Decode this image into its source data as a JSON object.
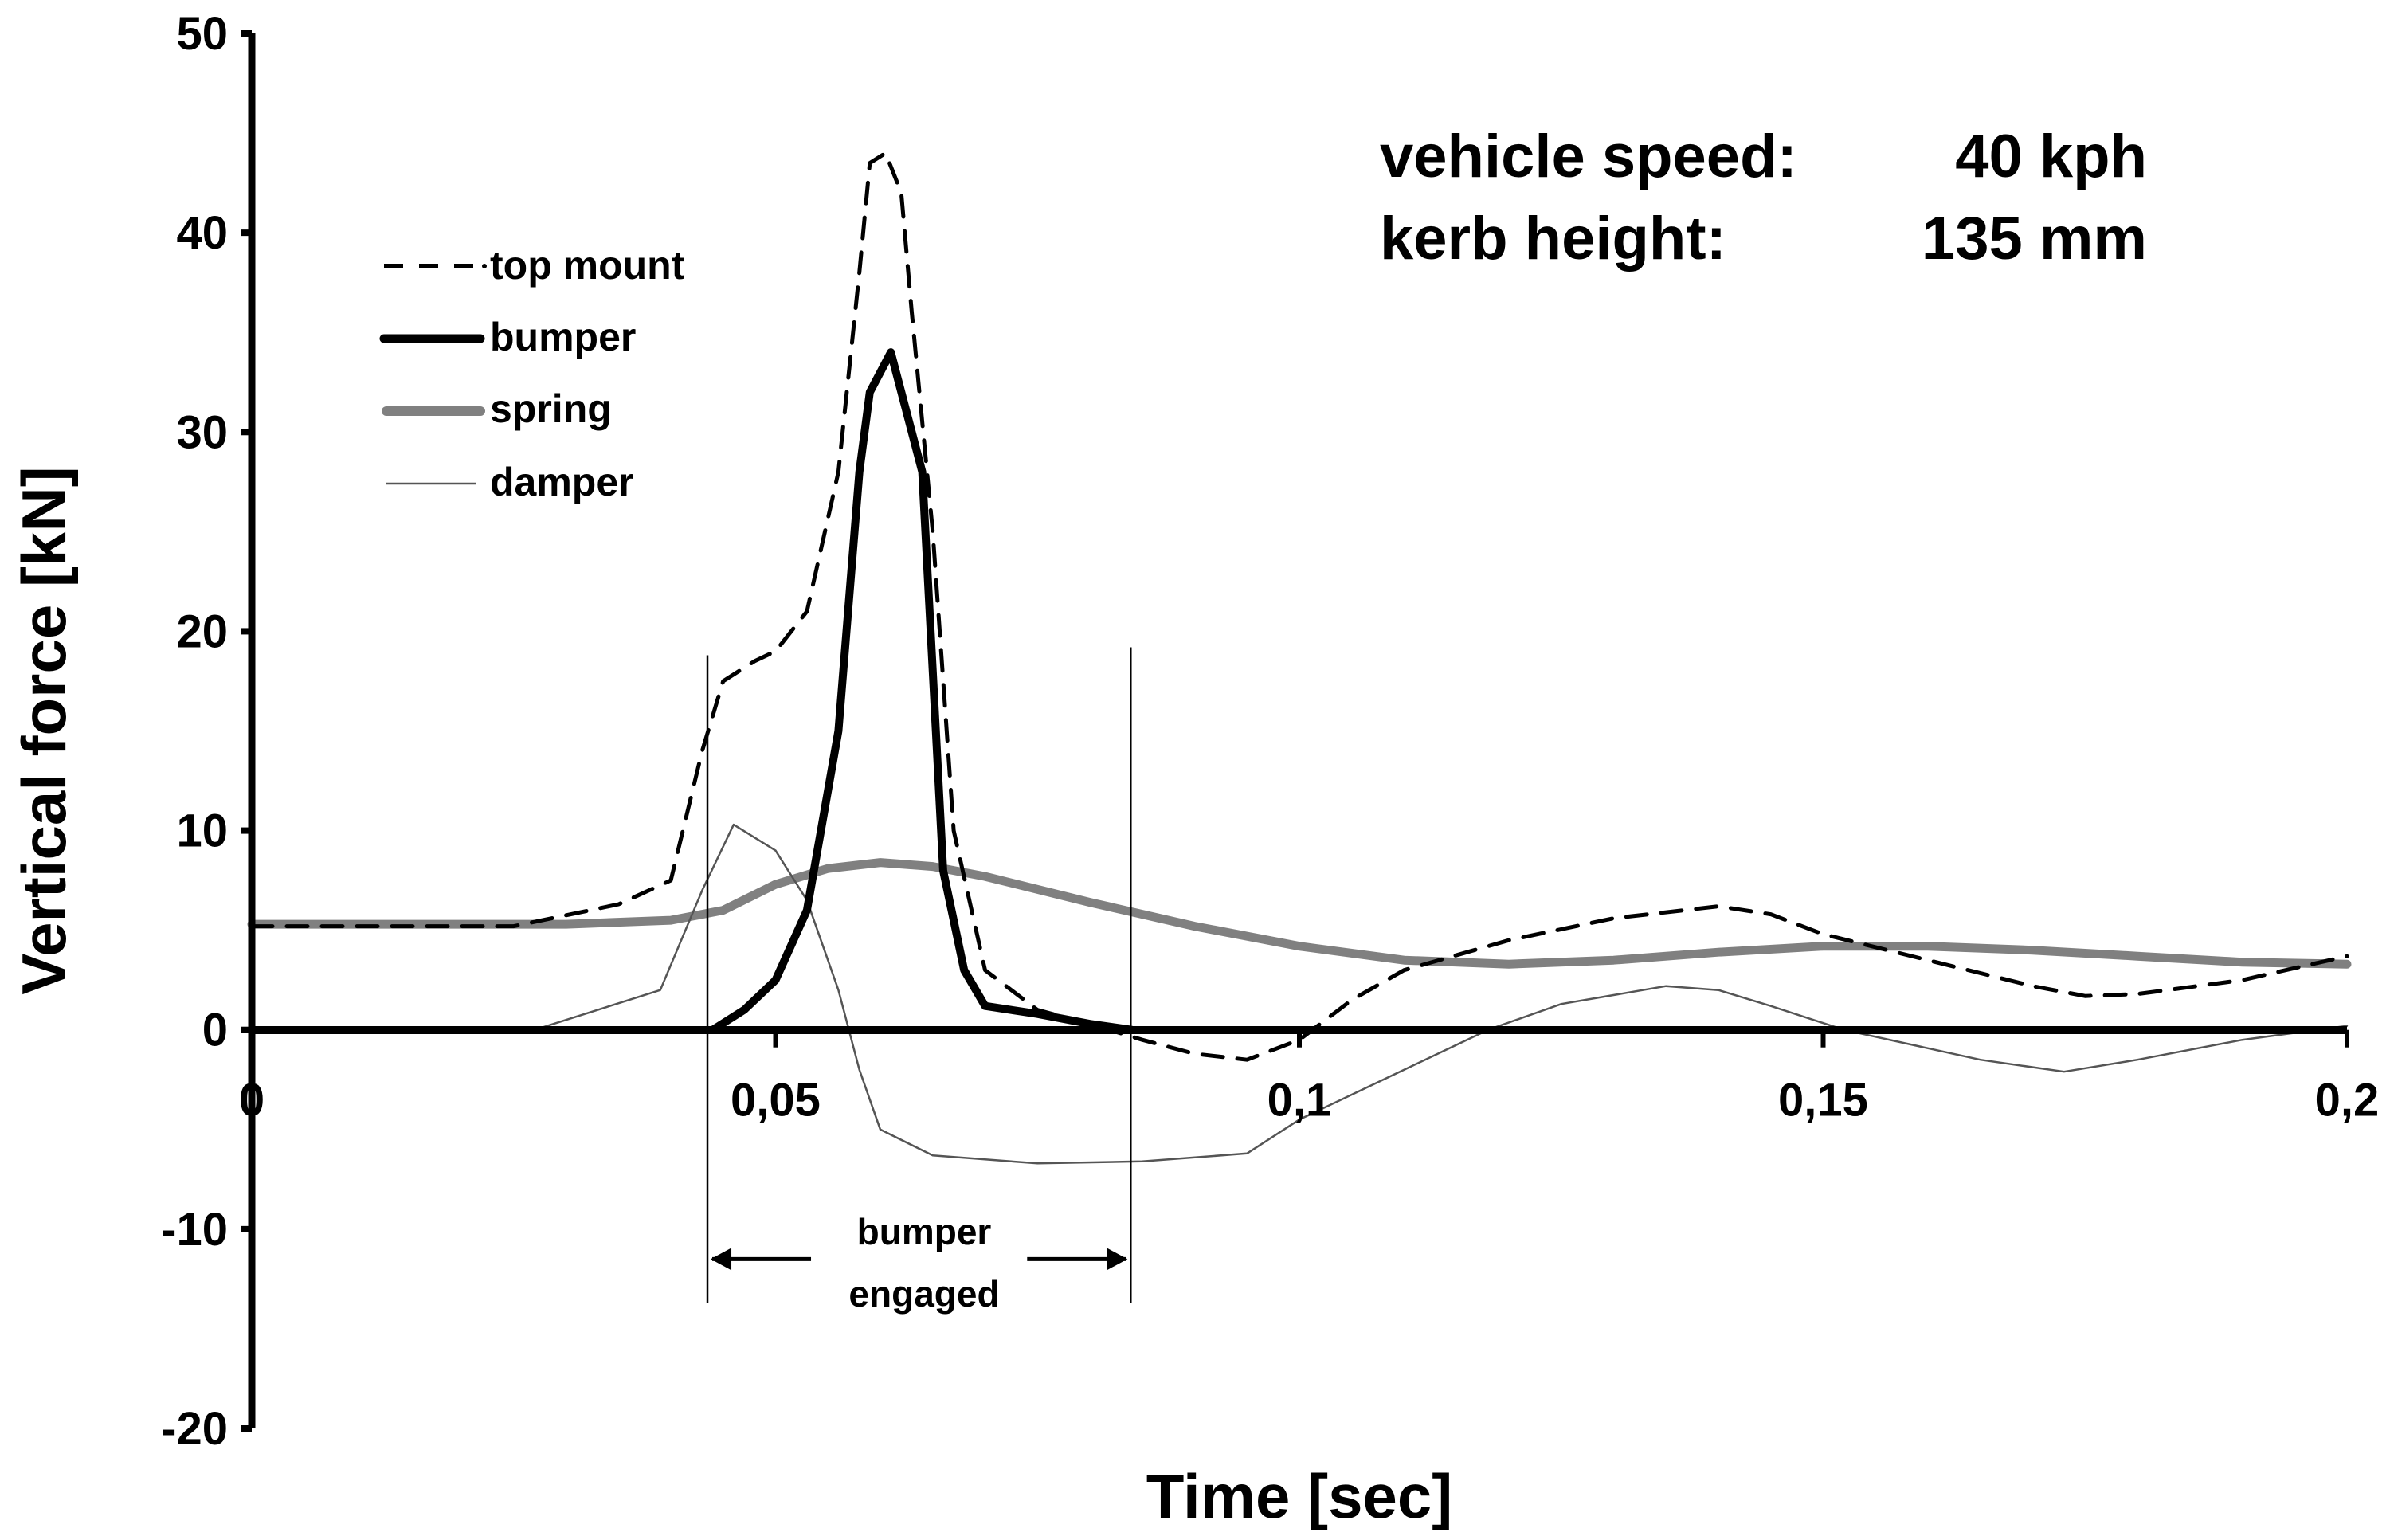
{
  "chart_data": {
    "type": "line",
    "title": "",
    "xlabel": "Time [sec]",
    "ylabel": "Vertical force [kN]",
    "xlim": [
      0,
      0.2
    ],
    "ylim": [
      -20,
      50
    ],
    "x_ticks": [
      "0",
      "0,05",
      "0,1",
      "0,15",
      "0,2"
    ],
    "x_tick_values": [
      0,
      0.05,
      0.1,
      0.15,
      0.2
    ],
    "y_ticks": [
      "50",
      "40",
      "30",
      "20",
      "10",
      "0",
      "-10",
      "-20"
    ],
    "y_tick_values": [
      50,
      40,
      30,
      20,
      10,
      0,
      -10,
      -20
    ],
    "grid": false,
    "legend_placement": "top-left",
    "annotations": {
      "speed_label": "vehicle speed:",
      "speed_value": "40 kph",
      "kerb_label": "kerb height:",
      "kerb_value": "135 mm",
      "range_label_1": "bumper",
      "range_label_2": "engaged",
      "range_start": 0.0435,
      "range_end": 0.0839
    },
    "series": [
      {
        "name": "top mount",
        "style": "dashed",
        "color": "#000000",
        "x": [
          0,
          0.025,
          0.035,
          0.04,
          0.043,
          0.045,
          0.048,
          0.05,
          0.053,
          0.056,
          0.058,
          0.059,
          0.0605,
          0.062,
          0.063,
          0.065,
          0.067,
          0.07,
          0.075,
          0.08,
          0.085,
          0.09,
          0.095,
          0.1,
          0.105,
          0.11,
          0.12,
          0.13,
          0.14,
          0.145,
          0.15,
          0.16,
          0.17,
          0.175,
          0.18,
          0.19,
          0.2
        ],
        "y": [
          5.2,
          5.2,
          6.3,
          7.5,
          14,
          17.5,
          18.5,
          19,
          21,
          28,
          38,
          43.5,
          44,
          42,
          36,
          25,
          10,
          3,
          1,
          0.3,
          -0.5,
          -1.2,
          -1.5,
          -0.5,
          1.5,
          3,
          4.5,
          5.6,
          6.2,
          5.8,
          4.8,
          3.5,
          2.2,
          1.7,
          1.8,
          2.5,
          3.7
        ]
      },
      {
        "name": "bumper",
        "style": "thick",
        "color": "#000000",
        "x": [
          0.044,
          0.047,
          0.05,
          0.053,
          0.056,
          0.058,
          0.059,
          0.061,
          0.063,
          0.064,
          0.065,
          0.066,
          0.068,
          0.07,
          0.075,
          0.08,
          0.084
        ],
        "y": [
          0,
          1,
          2.5,
          6,
          15,
          28,
          32,
          34,
          30,
          28,
          18,
          8,
          3,
          1.2,
          0.8,
          0.3,
          0
        ]
      },
      {
        "name": "spring",
        "style": "thick-gray",
        "color": "#808080",
        "x": [
          0,
          0.03,
          0.04,
          0.045,
          0.05,
          0.055,
          0.06,
          0.065,
          0.07,
          0.08,
          0.09,
          0.1,
          0.11,
          0.12,
          0.13,
          0.14,
          0.15,
          0.16,
          0.17,
          0.18,
          0.19,
          0.2
        ],
        "y": [
          5.3,
          5.3,
          5.5,
          6,
          7.3,
          8.1,
          8.4,
          8.2,
          7.7,
          6.4,
          5.2,
          4.2,
          3.5,
          3.3,
          3.5,
          3.9,
          4.2,
          4.2,
          4,
          3.7,
          3.4,
          3.3
        ]
      },
      {
        "name": "damper",
        "style": "thin",
        "color": "#555555",
        "x": [
          0.027,
          0.039,
          0.043,
          0.046,
          0.05,
          0.053,
          0.056,
          0.058,
          0.06,
          0.065,
          0.075,
          0.085,
          0.095,
          0.1,
          0.11,
          0.118,
          0.125,
          0.135,
          0.14,
          0.145,
          0.152,
          0.165,
          0.173,
          0.18,
          0.19,
          0.2
        ],
        "y": [
          0,
          2,
          7,
          10.3,
          9,
          6.5,
          2,
          -2,
          -5,
          -6.3,
          -6.7,
          -6.6,
          -6.2,
          -4.5,
          -2,
          0,
          1.3,
          2.2,
          2,
          1.2,
          0,
          -1.5,
          -2.1,
          -1.5,
          -0.5,
          0.2
        ]
      }
    ]
  }
}
